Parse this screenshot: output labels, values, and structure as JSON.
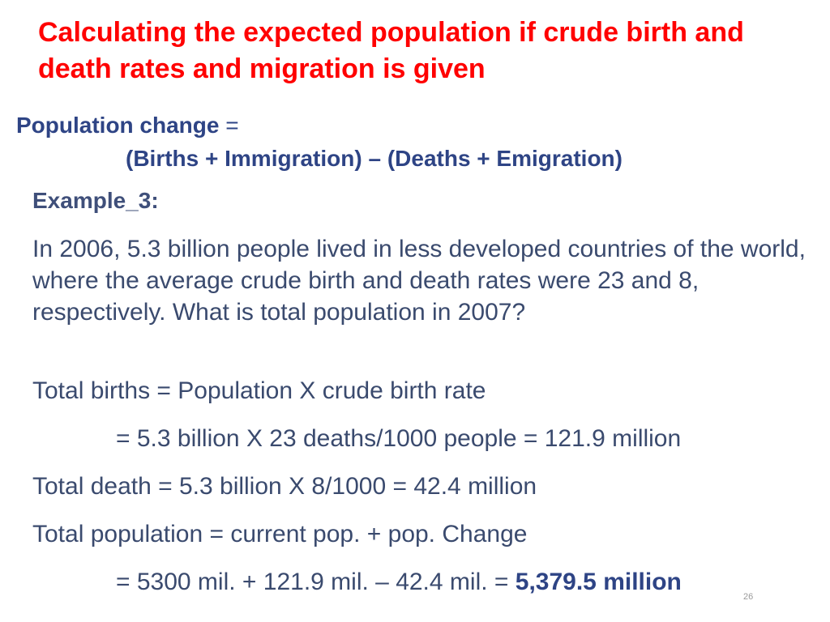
{
  "slide": {
    "title": "Calculating the expected population if crude birth and death rates and migration is given",
    "population_change_label": "Population change",
    "equals": " =",
    "formula": "(Births + Immigration) – (Deaths + Emigration)",
    "example_label": "Example_3:",
    "question": "In 2006, 5.3 billion people lived in less developed countries of the world, where the average crude birth and death rates were 23 and 8, respectively. What is total population in 2007?",
    "line1": "Total births = Population X crude birth rate",
    "line2": "= 5.3 billion  X 23 deaths/1000 people = 121.9 million",
    "line3": "Total death = 5.3 billion  X 8/1000 = 42.4 million",
    "line4": "Total population = current pop. + pop. Change",
    "line5_prefix": "= 5300 mil. + 121.9 mil. – 42.4 mil. = ",
    "line5_answer": "5,379.5 million",
    "page_number": "26"
  }
}
